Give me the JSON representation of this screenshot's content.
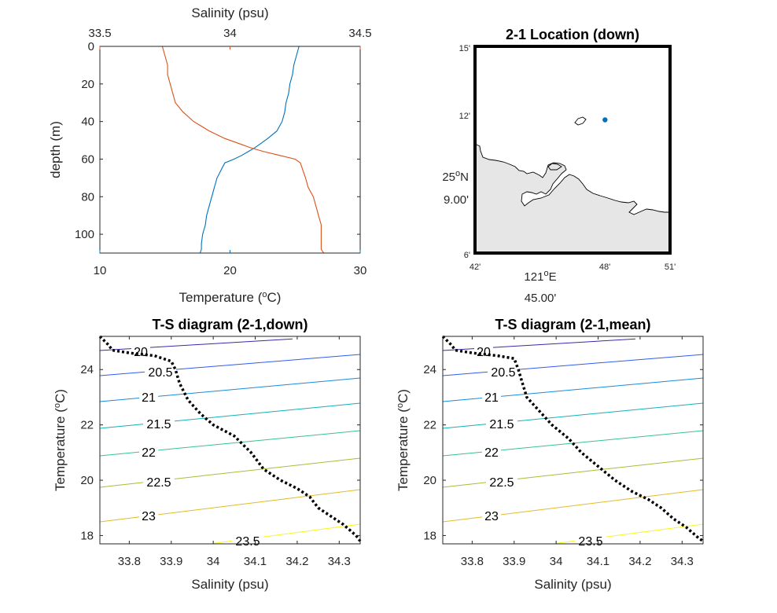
{
  "chart_data": [
    {
      "type": "line",
      "title": "",
      "xlabel": "Temperature (oC)",
      "x2label": "Salinity (psu)",
      "ylabel": "depth (m)",
      "xlim": [
        10,
        30
      ],
      "x2lim": [
        33.5,
        34.5
      ],
      "ylim": [
        0,
        110
      ],
      "y_reversed": true,
      "xticks": [
        "10",
        "20",
        "30"
      ],
      "x2ticks": [
        "33.5",
        "34",
        "34.5"
      ],
      "yticks": [
        "0",
        "20",
        "40",
        "60",
        "80",
        "100"
      ],
      "colors": {
        "temperature": "#0072BD",
        "salinity": "#D95319"
      },
      "series": [
        {
          "name": "Temperature",
          "color": "#0072BD",
          "x": [
            25.3,
            25.1,
            24.9,
            24.8,
            24.6,
            24.5,
            24.3,
            24.2,
            24.0,
            23.6,
            22.9,
            22.3,
            21.9,
            21.4,
            20.9,
            20.3,
            19.6,
            19.3,
            19.0,
            18.8,
            18.6,
            18.4,
            18.2,
            18.1,
            17.9,
            17.8,
            17.8,
            17.7
          ],
          "y": [
            0,
            5,
            10,
            15,
            20,
            25,
            30,
            35,
            40,
            45,
            49,
            52,
            54,
            56,
            58,
            60,
            62,
            66,
            70,
            75,
            80,
            85,
            90,
            95,
            100,
            105,
            108,
            110
          ]
        },
        {
          "name": "Salinity",
          "color": "#D95319",
          "x": [
            33.74,
            33.75,
            33.76,
            33.76,
            33.77,
            33.78,
            33.79,
            33.82,
            33.86,
            33.92,
            33.98,
            34.04,
            34.08,
            34.13,
            34.19,
            34.25,
            34.27,
            34.28,
            34.29,
            34.3,
            34.32,
            34.33,
            34.34,
            34.35,
            34.35,
            34.35,
            34.35,
            34.36
          ],
          "y": [
            0,
            5,
            10,
            15,
            20,
            25,
            30,
            35,
            40,
            45,
            49,
            52,
            54,
            56,
            58,
            60,
            62,
            66,
            70,
            75,
            80,
            85,
            90,
            95,
            100,
            105,
            108,
            110
          ]
        }
      ]
    },
    {
      "type": "map",
      "title": "2-1 Location (down)",
      "xticks": [
        "42'",
        "45.00'",
        "48'",
        "51'"
      ],
      "xlabel_main": "121",
      "xlabel_sup": "o",
      "xlabel_suffix": "E",
      "yticks": [
        "6'",
        "9.00'",
        "12'",
        "15'"
      ],
      "ylabel_main": "25",
      "ylabel_sup": "o",
      "ylabel_suffix": "N",
      "lon_range_min": [
        42,
        51
      ],
      "lat_range_min": [
        6,
        15
      ],
      "station": {
        "lon_min": 48.0,
        "lat_min": 11.8,
        "color": "#0072BD"
      },
      "land_color": "#E6E6E6"
    },
    {
      "type": "line",
      "title": "T-S diagram (2-1,down)",
      "xlabel": "Salinity (psu)",
      "ylabel": "Temperature (oC)",
      "xlim": [
        33.73,
        34.35
      ],
      "ylim": [
        17.7,
        25.2
      ],
      "xticks": [
        "33.8",
        "33.9",
        "34",
        "34.1",
        "34.2",
        "34.3"
      ],
      "yticks": [
        "18",
        "20",
        "22",
        "24"
      ],
      "contour_labels": [
        "20",
        "20.5",
        "21",
        "21.5",
        "22",
        "22.5",
        "23",
        "23.5"
      ],
      "series": [
        {
          "name": "",
          "color": "#000000",
          "style": "dotted",
          "x": [
            33.73,
            33.75,
            33.76,
            33.8,
            33.86,
            33.88,
            33.9,
            33.91,
            33.92,
            33.94,
            33.97,
            34.0,
            34.05,
            34.09,
            34.12,
            34.16,
            34.2,
            34.23,
            34.25,
            34.28,
            34.31,
            34.34,
            34.35
          ],
          "y": [
            25.2,
            24.9,
            24.7,
            24.6,
            24.5,
            24.4,
            24.3,
            24.0,
            23.5,
            22.9,
            22.4,
            22.0,
            21.6,
            21.0,
            20.4,
            20.0,
            19.7,
            19.4,
            19.0,
            18.7,
            18.4,
            18.0,
            17.8
          ]
        }
      ]
    },
    {
      "type": "line",
      "title": "T-S diagram (2-1,mean)",
      "xlabel": "Salinity (psu)",
      "ylabel": "Temperature (oC)",
      "xlim": [
        33.73,
        34.35
      ],
      "ylim": [
        17.7,
        25.2
      ],
      "xticks": [
        "33.8",
        "33.9",
        "34",
        "34.1",
        "34.2",
        "34.3"
      ],
      "yticks": [
        "18",
        "20",
        "22",
        "24"
      ],
      "contour_labels": [
        "20",
        "20.5",
        "21",
        "21.5",
        "22",
        "22.5",
        "23",
        "23.5"
      ],
      "series": [
        {
          "name": "",
          "color": "#000000",
          "style": "dotted",
          "x": [
            33.73,
            33.75,
            33.76,
            33.8,
            33.86,
            33.9,
            33.91,
            33.92,
            33.93,
            33.96,
            33.99,
            34.03,
            34.06,
            34.1,
            34.14,
            34.18,
            34.22,
            34.25,
            34.28,
            34.31,
            34.34,
            34.35
          ],
          "y": [
            25.2,
            24.9,
            24.7,
            24.6,
            24.5,
            24.4,
            24.0,
            23.5,
            23.0,
            22.5,
            22.0,
            21.5,
            21.0,
            20.5,
            20.0,
            19.6,
            19.3,
            19.0,
            18.6,
            18.3,
            17.9,
            17.8
          ]
        }
      ]
    }
  ]
}
